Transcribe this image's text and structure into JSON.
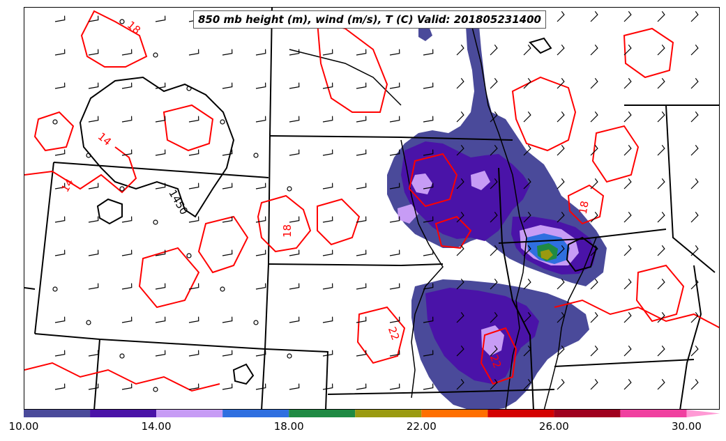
{
  "title": "850 mb height (m), wind (m/s), T (C) Valid: 201805231400",
  "colorbar": {
    "ticks": [
      "10.00",
      "14.00",
      "18.00",
      "22.00",
      "26.00",
      "30.00"
    ],
    "range": [
      10,
      31
    ],
    "bins": [
      {
        "from": 10,
        "to": 12,
        "color": "#4a4a9a"
      },
      {
        "from": 12,
        "to": 14,
        "color": "#4a13a8"
      },
      {
        "from": 14,
        "to": 16,
        "color": "#c79cf5"
      },
      {
        "from": 16,
        "to": 18,
        "color": "#2f6fe0"
      },
      {
        "from": 18,
        "to": 20,
        "color": "#1f8a43"
      },
      {
        "from": 20,
        "to": 22,
        "color": "#9a9a10"
      },
      {
        "from": 22,
        "to": 24,
        "color": "#ff6f00"
      },
      {
        "from": 24,
        "to": 26,
        "color": "#d40000"
      },
      {
        "from": 26,
        "to": 28,
        "color": "#a0001e"
      },
      {
        "from": 28,
        "to": 30,
        "color": "#f040a0"
      },
      {
        "from": 30,
        "to": 31,
        "color": "#ff9ad5"
      }
    ]
  },
  "contour_labels": [
    {
      "text": "18",
      "color": "#ff0000"
    },
    {
      "text": "14",
      "color": "#ff0000"
    },
    {
      "text": "14",
      "color": "#ff0000"
    },
    {
      "text": "18",
      "color": "#ff0000"
    },
    {
      "text": "18",
      "color": "#ff0000"
    },
    {
      "text": "22",
      "color": "#ff0000"
    },
    {
      "text": "22",
      "color": "#ff0000"
    },
    {
      "text": "1450",
      "color": "#000000"
    }
  ],
  "colors": {
    "temperature_contour": "#ff0000",
    "height_contour": "#000000",
    "borders": "#000000"
  }
}
